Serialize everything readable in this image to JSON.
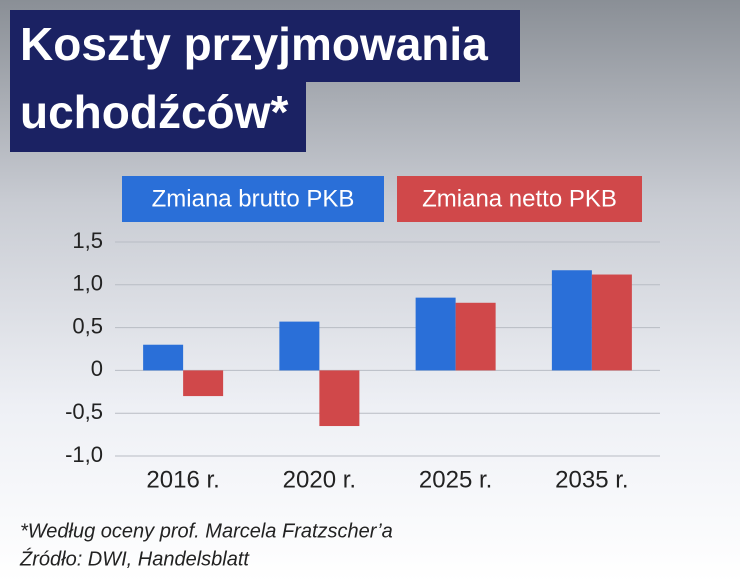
{
  "chart_data": {
    "type": "bar",
    "title": [
      "Koszty przyjmowania",
      "uchodźców*"
    ],
    "categories": [
      "2016 r.",
      "2020 r.",
      "2025 r.",
      "2035 r."
    ],
    "series": [
      {
        "name": "Zmiana brutto PKB",
        "color": "#2a6fd8",
        "values": [
          0.3,
          0.57,
          0.85,
          1.17
        ]
      },
      {
        "name": "Zmiana netto PKB",
        "color": "#d0484a",
        "values": [
          -0.3,
          -0.65,
          0.79,
          1.12
        ]
      }
    ],
    "ylim": [
      -1.0,
      1.5
    ],
    "yticks": [
      {
        "value": -1.0,
        "label": "-1,0"
      },
      {
        "value": -0.5,
        "label": "-0,5"
      },
      0,
      {
        "value": 0.5,
        "label": "0,5"
      },
      {
        "value": 1.0,
        "label": "1,0"
      },
      {
        "value": 1.5,
        "label": "1,5"
      }
    ],
    "grid": true,
    "footnote": "*Według oceny prof. Marcela Fratzscher’a",
    "source": "Źródło: DWI, Handelsblatt"
  }
}
